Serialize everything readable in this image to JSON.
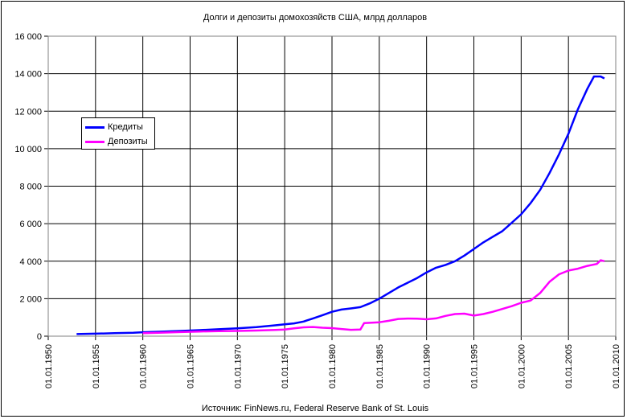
{
  "chart_data": {
    "type": "line",
    "title": "Долги и депозиты домохозяйств США, млрд долларов",
    "source": "Источник: FinNews.ru, Federal Reserve Bank of St. Louis",
    "xlabel": "",
    "ylabel": "",
    "xlim": [
      "01.01.1950",
      "01.01.2010"
    ],
    "ylim": [
      0,
      16000
    ],
    "yticks": [
      0,
      2000,
      4000,
      6000,
      8000,
      10000,
      12000,
      14000,
      16000
    ],
    "ytick_labels": [
      "0",
      "2 000",
      "4 000",
      "6 000",
      "8 000",
      "10 000",
      "12 000",
      "14 000",
      "16 000"
    ],
    "xtick_labels": [
      "01.01.1950",
      "01.01.1955",
      "01.01.1960",
      "01.01.1965",
      "01.01.1970",
      "01.01.1975",
      "01.01.1980",
      "01.01.1985",
      "01.01.1990",
      "01.01.1995",
      "01.01.2000",
      "01.01.2005",
      "01.01.2010"
    ],
    "grid": true,
    "legend_position": "left",
    "series": [
      {
        "name": "Кредиты",
        "color": "#0000ff",
        "points": [
          [
            1953,
            110
          ],
          [
            1955,
            135
          ],
          [
            1957,
            160
          ],
          [
            1959,
            185
          ],
          [
            1960,
            210
          ],
          [
            1962,
            240
          ],
          [
            1964,
            280
          ],
          [
            1966,
            320
          ],
          [
            1968,
            370
          ],
          [
            1970,
            420
          ],
          [
            1972,
            480
          ],
          [
            1974,
            580
          ],
          [
            1975,
            630
          ],
          [
            1976,
            680
          ],
          [
            1977,
            780
          ],
          [
            1978,
            950
          ],
          [
            1979,
            1120
          ],
          [
            1980,
            1300
          ],
          [
            1981,
            1420
          ],
          [
            1982,
            1480
          ],
          [
            1983,
            1550
          ],
          [
            1984,
            1750
          ],
          [
            1985,
            2000
          ],
          [
            1986,
            2300
          ],
          [
            1987,
            2600
          ],
          [
            1988,
            2850
          ],
          [
            1989,
            3100
          ],
          [
            1990,
            3400
          ],
          [
            1991,
            3650
          ],
          [
            1992,
            3800
          ],
          [
            1993,
            4000
          ],
          [
            1994,
            4300
          ],
          [
            1995,
            4650
          ],
          [
            1996,
            5000
          ],
          [
            1997,
            5300
          ],
          [
            1998,
            5600
          ],
          [
            1999,
            6050
          ],
          [
            2000,
            6500
          ],
          [
            2001,
            7100
          ],
          [
            2002,
            7800
          ],
          [
            2003,
            8700
          ],
          [
            2004,
            9700
          ],
          [
            2005,
            10800
          ],
          [
            2006,
            12100
          ],
          [
            2007,
            13200
          ],
          [
            2007.7,
            13850
          ],
          [
            2008.4,
            13850
          ],
          [
            2008.8,
            13750
          ]
        ]
      },
      {
        "name": "Депозиты",
        "color": "#ff00ff",
        "points": [
          [
            1960,
            160
          ],
          [
            1962,
            190
          ],
          [
            1964,
            220
          ],
          [
            1966,
            250
          ],
          [
            1968,
            270
          ],
          [
            1970,
            280
          ],
          [
            1972,
            300
          ],
          [
            1974,
            330
          ],
          [
            1975,
            350
          ],
          [
            1976,
            420
          ],
          [
            1977,
            470
          ],
          [
            1978,
            490
          ],
          [
            1979,
            450
          ],
          [
            1980,
            430
          ],
          [
            1981,
            380
          ],
          [
            1982,
            340
          ],
          [
            1983,
            350
          ],
          [
            1983.4,
            700
          ],
          [
            1984,
            710
          ],
          [
            1985,
            740
          ],
          [
            1986,
            820
          ],
          [
            1987,
            920
          ],
          [
            1988,
            940
          ],
          [
            1989,
            930
          ],
          [
            1990,
            900
          ],
          [
            1991,
            950
          ],
          [
            1992,
            1080
          ],
          [
            1993,
            1180
          ],
          [
            1994,
            1200
          ],
          [
            1995,
            1100
          ],
          [
            1996,
            1180
          ],
          [
            1997,
            1300
          ],
          [
            1998,
            1450
          ],
          [
            1999,
            1600
          ],
          [
            2000,
            1780
          ],
          [
            2001,
            1900
          ],
          [
            2002,
            2300
          ],
          [
            2003,
            2900
          ],
          [
            2004,
            3300
          ],
          [
            2005,
            3500
          ],
          [
            2006,
            3600
          ],
          [
            2007,
            3750
          ],
          [
            2008,
            3850
          ],
          [
            2008.4,
            4050
          ],
          [
            2008.8,
            4000
          ]
        ]
      }
    ]
  }
}
